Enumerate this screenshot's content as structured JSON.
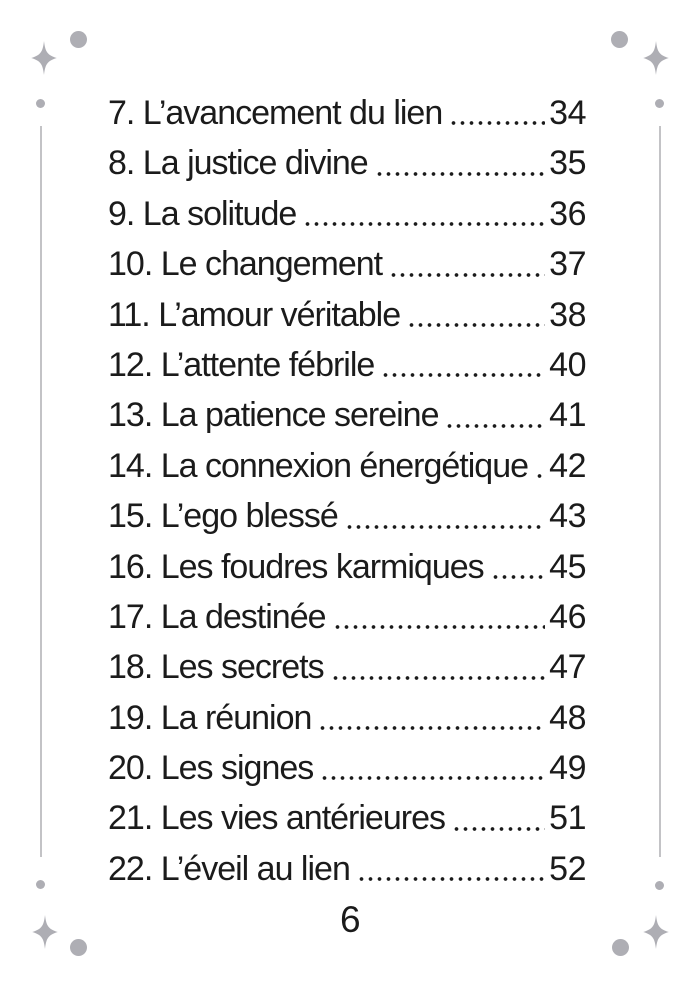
{
  "page": {
    "folio": "6"
  },
  "toc": {
    "entries": [
      {
        "label": "7. L’avancement du lien",
        "page": "34"
      },
      {
        "label": "8. La justice divine",
        "page": "35"
      },
      {
        "label": "9. La solitude",
        "page": "36"
      },
      {
        "label": "10. Le changement",
        "page": "37"
      },
      {
        "label": "11. L’amour véritable",
        "page": "38"
      },
      {
        "label": "12. L’attente fébrile",
        "page": "40"
      },
      {
        "label": "13. La patience sereine",
        "page": "41"
      },
      {
        "label": "14. La connexion énergétique",
        "page": "42"
      },
      {
        "label": "15. L’ego blessé",
        "page": "43"
      },
      {
        "label": "16. Les foudres karmiques",
        "page": "45"
      },
      {
        "label": "17. La destinée",
        "page": "46"
      },
      {
        "label": "18. Les secrets",
        "page": "47"
      },
      {
        "label": "19. La réunion",
        "page": "48"
      },
      {
        "label": "20. Les signes",
        "page": "49"
      },
      {
        "label": "21. Les vies antérieures",
        "page": "51"
      },
      {
        "label": "22. L’éveil au lien",
        "page": "52"
      }
    ]
  },
  "colors": {
    "text": "#1b1b1b",
    "ornament": "#aeaeb4",
    "rule": "#c3c3c6",
    "background": "#ffffff"
  },
  "icons": {
    "sparkle": "four-pointed-star"
  }
}
